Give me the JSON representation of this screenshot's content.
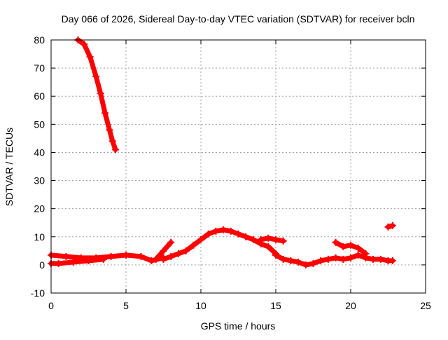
{
  "chart_data": {
    "type": "scatter",
    "title": "Day 066 of 2026, Sidereal Day-to-day VTEC variation (SDTVAR) for receiver bcln",
    "xlabel": "GPS time / hours",
    "ylabel": "SDTVAR / TECUs",
    "xlim": [
      0,
      25
    ],
    "ylim": [
      -10,
      80
    ],
    "xticks": [
      0,
      5,
      10,
      15,
      20,
      25
    ],
    "yticks": [
      -10,
      0,
      10,
      20,
      30,
      40,
      50,
      60,
      70,
      80
    ],
    "grid": true,
    "legend": "none",
    "marker": "plus",
    "color": "#ff0000",
    "series": [
      {
        "name": "steep decline",
        "x": [
          1.8,
          2.2,
          2.6,
          3.0,
          3.3,
          3.6,
          3.9,
          4.1,
          4.3
        ],
        "y": [
          80,
          78.5,
          74,
          67,
          61,
          54,
          48,
          44,
          41
        ]
      },
      {
        "name": "baseline upper",
        "x": [
          0,
          1,
          2,
          3,
          4,
          5,
          6,
          6.7,
          7.5
        ],
        "y": [
          3.5,
          3,
          2.5,
          2.5,
          3,
          3.5,
          3,
          1.5,
          2.5
        ]
      },
      {
        "name": "baseline lower",
        "x": [
          0,
          0.5,
          1.5,
          2.5,
          3.5
        ],
        "y": [
          0.5,
          0.5,
          1,
          1.5,
          2
        ]
      },
      {
        "name": "diurnal rise",
        "x": [
          7.5,
          8,
          8.5,
          9,
          9.5,
          10,
          10.5,
          11,
          11.5,
          12,
          12.5,
          13,
          13.5,
          14,
          14.5,
          15
        ],
        "y": [
          2,
          3,
          4,
          5,
          7,
          9,
          11,
          12,
          12.5,
          12,
          11,
          10,
          9,
          7.5,
          6.5,
          4
        ]
      },
      {
        "name": "early spike",
        "x": [
          7,
          7.5,
          8
        ],
        "y": [
          2,
          5,
          8
        ]
      },
      {
        "name": "late evening",
        "x": [
          15,
          15.5,
          16,
          16.5,
          17,
          17.5,
          18,
          18.5,
          19,
          19.5,
          20,
          20.5,
          21,
          21.5,
          22,
          22.5,
          22.8
        ],
        "y": [
          3.5,
          2,
          1.5,
          1,
          0,
          0.5,
          1.5,
          2,
          2.5,
          2,
          2.5,
          3.5,
          2.5,
          2,
          2,
          1.5,
          1.5
        ]
      },
      {
        "name": "evening arc",
        "x": [
          19,
          19.5,
          20,
          20.5,
          21
        ],
        "y": [
          8,
          6.5,
          7,
          6,
          4
        ]
      },
      {
        "name": "plateau",
        "x": [
          14,
          14.5,
          15,
          15.5
        ],
        "y": [
          9,
          9.5,
          9,
          8.5
        ]
      },
      {
        "name": "isolated",
        "x": [
          22.5,
          22.8
        ],
        "y": [
          13.5,
          14
        ]
      }
    ]
  }
}
